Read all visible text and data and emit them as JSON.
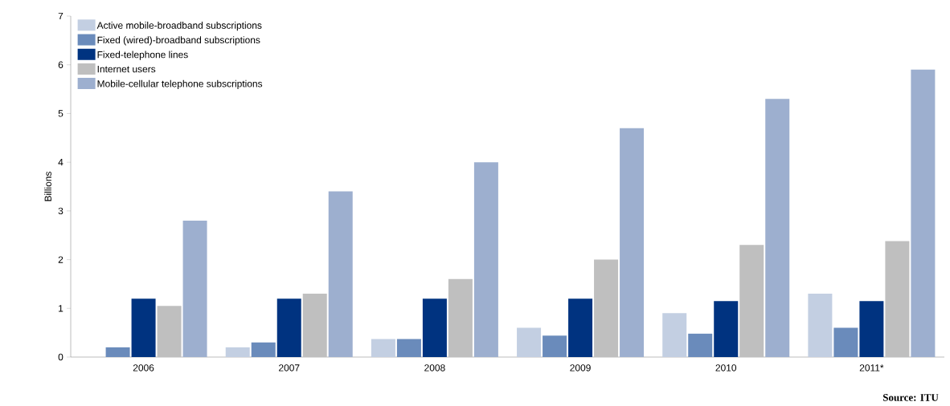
{
  "chart_data": {
    "type": "bar",
    "ylabel": "Billions",
    "categories": [
      "2006",
      "2007",
      "2008",
      "2009",
      "2010",
      "2011*"
    ],
    "series": [
      {
        "name": "Active mobile-broadband subscriptions",
        "color": "#c3cfe2",
        "values": [
          null,
          0.2,
          0.37,
          0.6,
          0.9,
          1.3
        ]
      },
      {
        "name": "Fixed (wired)-broadband subscriptions",
        "color": "#6a8bbb",
        "values": [
          0.2,
          0.3,
          0.37,
          0.44,
          0.48,
          0.6
        ]
      },
      {
        "name": "Fixed-telephone lines",
        "color": "#003380",
        "values": [
          1.2,
          1.2,
          1.2,
          1.2,
          1.15,
          1.15
        ]
      },
      {
        "name": "Internet users",
        "color": "#bfbfbf",
        "values": [
          1.05,
          1.3,
          1.6,
          2.0,
          2.3,
          2.38
        ]
      },
      {
        "name": "Mobile-cellular telephone subscriptions",
        "color": "#9dafcf",
        "values": [
          2.8,
          3.4,
          4.0,
          4.7,
          5.3,
          5.9
        ]
      }
    ],
    "ylim": [
      0,
      7
    ],
    "yticks": [
      0,
      1,
      2,
      3,
      4,
      5,
      6,
      7
    ],
    "legend": "top left",
    "grid": false,
    "annotations": [
      "Source: ITU"
    ]
  }
}
